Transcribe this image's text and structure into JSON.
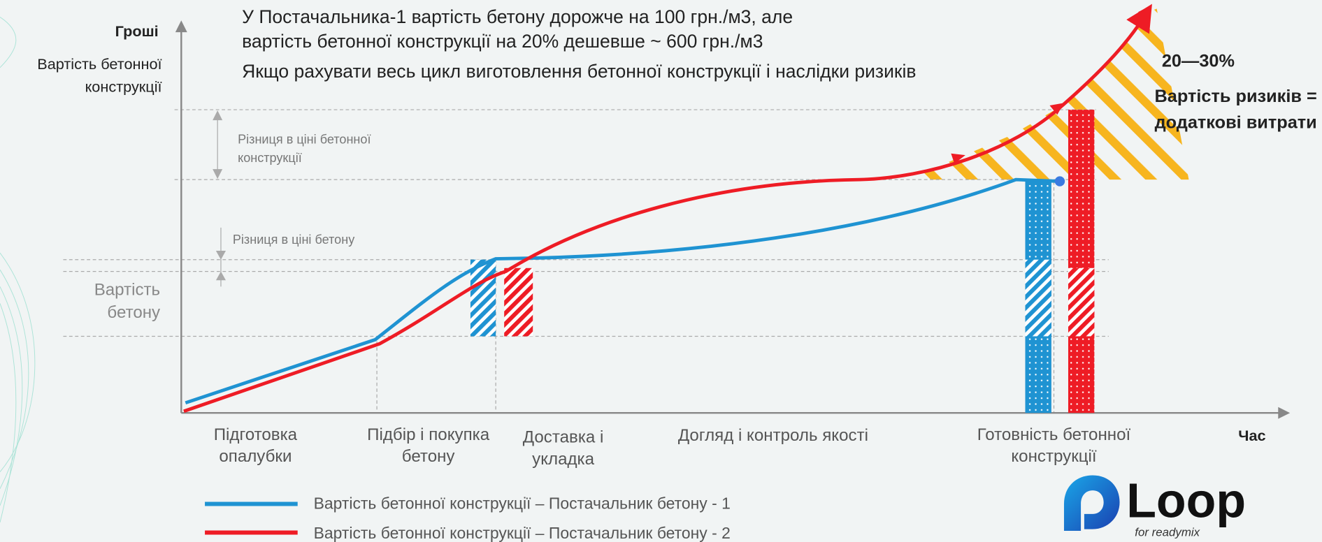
{
  "header": {
    "lines": [
      "У Постачальника-1 вартість бетону дорожче на 100 грн./м3, але",
      "вартість бетонної конструкції на 20% дешевше ~ 600 грн./м3",
      "Якщо рахувати весь цикл виготовлення бетонної конструкції і наслідки ризиків"
    ]
  },
  "y_axis": {
    "title": "Гроші",
    "subtitle": [
      "Вартість бетонної",
      "конструкції"
    ]
  },
  "x_axis": {
    "title": "Час",
    "stages": [
      [
        "Підготовка",
        "опалубки"
      ],
      [
        "Підбір і покупка",
        "бетону"
      ],
      [
        "Доставка і",
        "укладка"
      ],
      [
        "Догляд і контроль якості"
      ],
      [
        "Готовність бетонної",
        "конструкції"
      ]
    ]
  },
  "annotations": {
    "concrete_cost": [
      "Вартість",
      "бетону"
    ],
    "structure_diff": [
      "Різниця в ціні бетонної",
      "конструкції"
    ],
    "concrete_diff": "Різниця в ціні бетону",
    "risk_share": "20—30%",
    "risk_cost": [
      "Вартість ризиків =",
      "додаткові витрати"
    ]
  },
  "legend": [
    "Вартість бетонної конструкції – Постачальник бетону - 1",
    "Вартість бетонної конструкції – Постачальник бетону - 2"
  ],
  "logo": {
    "name": "Loop",
    "tagline": "for readymix"
  }
}
